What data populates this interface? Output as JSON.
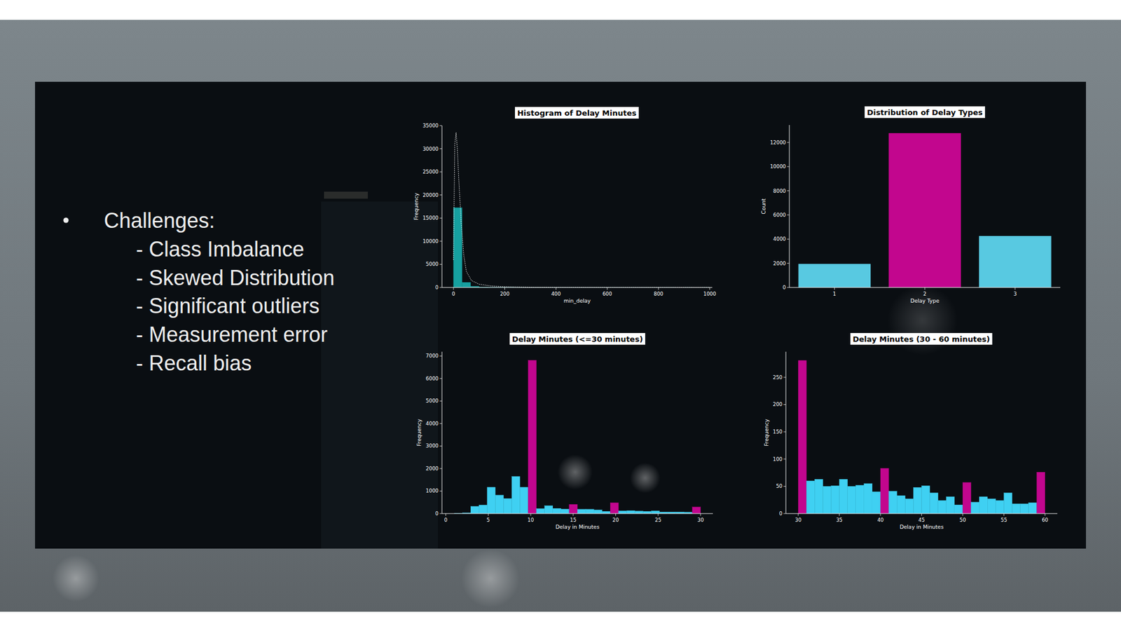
{
  "slide": {
    "heading": "Challenges:",
    "items": [
      "- Class Imbalance",
      "- Skewed Distribution",
      "- Significant outliers",
      "- Measurement error",
      "- Recall bias"
    ]
  },
  "chart_data": [
    {
      "type": "histogram",
      "title": "Histogram of Delay Minutes",
      "x_label": "min_delay",
      "y_label": "Frequency",
      "bins": [
        0,
        33.3,
        66.7,
        100,
        133.3,
        166.7,
        200,
        233.3,
        266.7,
        300,
        333.3,
        366.7,
        400,
        433.3,
        466.7,
        500,
        533.3,
        566.7,
        600,
        633.3,
        666.7,
        700,
        733.3,
        766.7,
        800,
        833.3,
        866.7,
        900,
        933.3,
        966.7,
        1000
      ],
      "values": [
        17250,
        1100,
        250,
        100,
        50,
        30,
        20,
        15,
        10,
        8,
        6,
        5,
        4,
        3,
        3,
        2,
        2,
        2,
        1,
        1,
        1,
        1,
        1,
        1,
        1,
        1,
        0,
        1,
        0,
        1
      ],
      "color": "#16a0a0",
      "xlim": [
        -45,
        1010
      ],
      "ylim": [
        0,
        35000
      ],
      "xticks": [
        0,
        200,
        400,
        600,
        800,
        1000
      ],
      "yticks": [
        0,
        5000,
        10000,
        15000,
        20000,
        25000,
        30000,
        35000
      ],
      "kde": {
        "x": [
          0,
          5,
          10,
          15,
          20,
          30,
          40,
          50,
          70,
          100,
          150,
          200,
          300,
          400,
          600,
          800,
          1000
        ],
        "values": [
          6000,
          31000,
          33500,
          30000,
          24000,
          14000,
          7000,
          3500,
          1500,
          700,
          300,
          150,
          60,
          30,
          10,
          5,
          2
        ],
        "color": "#ffffff",
        "line_style": "dotted"
      }
    },
    {
      "type": "bar",
      "title": "Distribution of Delay Types",
      "x_label": "Delay Type",
      "y_label": "Count",
      "categories": [
        "1",
        "2",
        "3"
      ],
      "values": [
        1950,
        12770,
        4260
      ],
      "colors": [
        "#58c9e1",
        "#c2068e",
        "#58c9e1"
      ],
      "ylim": [
        0,
        13440
      ],
      "yticks": [
        0,
        2000,
        4000,
        6000,
        8000,
        10000,
        12000
      ]
    },
    {
      "type": "histogram",
      "title": "Delay Minutes (<=30 minutes)",
      "x_label": "Delay in Minutes",
      "y_label": "Frequency",
      "bins": [
        1,
        1.97,
        2.93,
        3.9,
        4.87,
        5.83,
        6.8,
        7.77,
        8.73,
        9.7,
        10.67,
        11.63,
        12.6,
        13.57,
        14.53,
        15.5,
        16.47,
        17.43,
        18.4,
        19.37,
        20.33,
        21.3,
        22.27,
        23.23,
        24.2,
        25.17,
        26.13,
        27.1,
        28.07,
        29.03,
        30
      ],
      "values": [
        10,
        30,
        320,
        380,
        1170,
        820,
        670,
        1650,
        1170,
        6810,
        220,
        350,
        230,
        200,
        410,
        190,
        190,
        160,
        100,
        480,
        120,
        130,
        110,
        100,
        120,
        70,
        70,
        70,
        60,
        290
      ],
      "colors": [
        "#3fd0f2",
        "#3fd0f2",
        "#3fd0f2",
        "#3fd0f2",
        "#3fd0f2",
        "#3fd0f2",
        "#3fd0f2",
        "#3fd0f2",
        "#3fd0f2",
        "#c2068e",
        "#3fd0f2",
        "#3fd0f2",
        "#3fd0f2",
        "#3fd0f2",
        "#c2068e",
        "#3fd0f2",
        "#3fd0f2",
        "#3fd0f2",
        "#3fd0f2",
        "#c2068e",
        "#3fd0f2",
        "#3fd0f2",
        "#3fd0f2",
        "#3fd0f2",
        "#3fd0f2",
        "#3fd0f2",
        "#3fd0f2",
        "#3fd0f2",
        "#3fd0f2",
        "#c2068e"
      ],
      "xlim": [
        -0.45,
        31.45
      ],
      "ylim": [
        0,
        7190
      ],
      "xticks": [
        0,
        5,
        10,
        15,
        20,
        25,
        30
      ],
      "yticks": [
        0,
        1000,
        2000,
        3000,
        4000,
        5000,
        6000,
        7000
      ]
    },
    {
      "type": "histogram",
      "title": "Delay Minutes (30 - 60 minutes)",
      "x_label": "Delay in Minutes",
      "y_label": "Frequency",
      "bins": [
        30,
        31,
        32,
        33,
        34,
        35,
        36,
        37,
        38,
        39,
        40,
        41,
        42,
        43,
        44,
        45,
        46,
        47,
        48,
        49,
        50,
        51,
        52,
        53,
        54,
        55,
        56,
        57,
        58,
        59,
        60
      ],
      "values": [
        281,
        60,
        63,
        50,
        51,
        63,
        50,
        52,
        55,
        40,
        83,
        41,
        33,
        27,
        48,
        51,
        38,
        24,
        31,
        16,
        57,
        21,
        31,
        27,
        24,
        38,
        18,
        18,
        20,
        76
      ],
      "colors": [
        "#c2068e",
        "#3fd0f2",
        "#3fd0f2",
        "#3fd0f2",
        "#3fd0f2",
        "#3fd0f2",
        "#3fd0f2",
        "#3fd0f2",
        "#3fd0f2",
        "#3fd0f2",
        "#c2068e",
        "#3fd0f2",
        "#3fd0f2",
        "#3fd0f2",
        "#3fd0f2",
        "#3fd0f2",
        "#3fd0f2",
        "#3fd0f2",
        "#3fd0f2",
        "#3fd0f2",
        "#c2068e",
        "#3fd0f2",
        "#3fd0f2",
        "#3fd0f2",
        "#3fd0f2",
        "#3fd0f2",
        "#3fd0f2",
        "#3fd0f2",
        "#3fd0f2",
        "#c2068e"
      ],
      "xlim": [
        28.5,
        61.5
      ],
      "ylim": [
        0,
        297
      ],
      "xticks": [
        30,
        35,
        40,
        45,
        50,
        55,
        60
      ],
      "yticks": [
        0,
        50,
        100,
        150,
        200,
        250
      ]
    }
  ]
}
